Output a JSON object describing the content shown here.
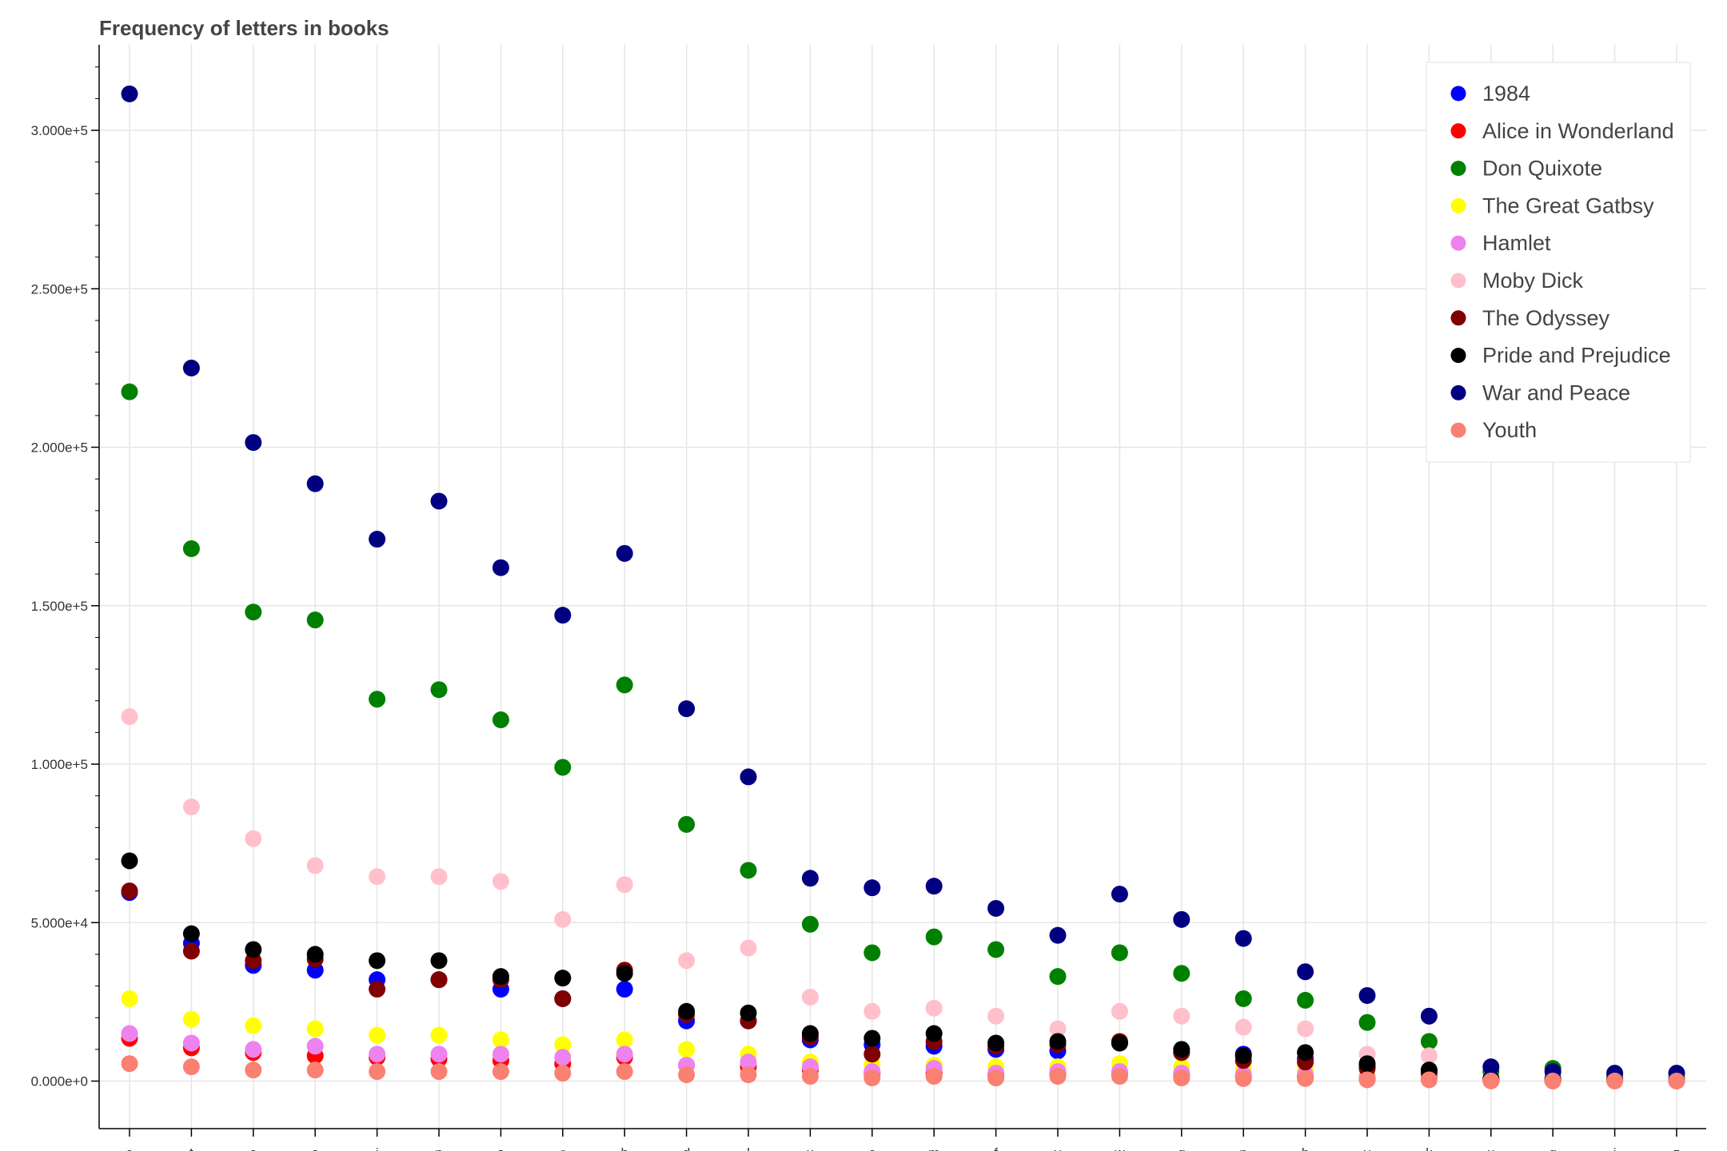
{
  "chart_data": {
    "type": "scatter",
    "title": "Frequency of letters in books",
    "xlabel": "",
    "ylabel": "",
    "categories": [
      "e",
      "t",
      "a",
      "o",
      "i",
      "n",
      "s",
      "r",
      "h",
      "d",
      "l",
      "u",
      "c",
      "m",
      "f",
      "y",
      "w",
      "g",
      "p",
      "b",
      "v",
      "k",
      "x",
      "q",
      "j",
      "z"
    ],
    "y_ticks": [
      "0.000e+0",
      "5.000e+4",
      "1.000e+5",
      "1.500e+5",
      "2.000e+5",
      "2.500e+5",
      "3.000e+5"
    ],
    "y_tick_values": [
      0,
      50000,
      100000,
      150000,
      200000,
      250000,
      300000
    ],
    "ylim": [
      -15000,
      327000
    ],
    "grid": true,
    "legend_position": "top-right",
    "series": [
      {
        "name": "1984",
        "color": "#0000ff",
        "values": [
          59500,
          43500,
          36500,
          35000,
          32000,
          32000,
          29000,
          26000,
          29000,
          19000,
          19000,
          13000,
          11500,
          11000,
          10000,
          9500,
          12000,
          9000,
          8500,
          7000,
          4500,
          3000,
          700,
          300,
          300,
          300
        ]
      },
      {
        "name": "Alice in Wonderland",
        "color": "#ff0000",
        "values": [
          13500,
          10500,
          9000,
          8000,
          7500,
          7000,
          6500,
          5500,
          7500,
          5000,
          4500,
          3500,
          2500,
          2500,
          2000,
          2500,
          2500,
          2000,
          1500,
          1500,
          800,
          1000,
          200,
          100,
          200,
          100
        ]
      },
      {
        "name": "Don Quixote",
        "color": "#008000",
        "values": [
          217500,
          168000,
          148000,
          145500,
          120500,
          123500,
          114000,
          99000,
          125000,
          81000,
          66500,
          49500,
          40500,
          45500,
          41500,
          33000,
          40500,
          34000,
          26000,
          25500,
          18500,
          12500,
          3000,
          4000,
          1500,
          1000
        ]
      },
      {
        "name": "The Great Gatbsy",
        "color": "#ffff00",
        "values": [
          26000,
          19500,
          17500,
          16500,
          14500,
          14500,
          13000,
          11500,
          13000,
          10000,
          8500,
          6000,
          5000,
          5000,
          4500,
          4500,
          5500,
          4500,
          3500,
          3500,
          2000,
          2000,
          300,
          200,
          200,
          200
        ]
      },
      {
        "name": "Hamlet",
        "color": "#ee82ee",
        "values": [
          15000,
          12000,
          10000,
          11000,
          8500,
          8500,
          8500,
          7500,
          8500,
          5000,
          6000,
          4500,
          3000,
          4000,
          2500,
          3000,
          3000,
          2500,
          2000,
          2000,
          1200,
          1000,
          200,
          200,
          200,
          100
        ]
      },
      {
        "name": "Moby Dick",
        "color": "#ffc0cb",
        "values": [
          115000,
          86500,
          76500,
          68000,
          64500,
          64500,
          63000,
          51000,
          62000,
          38000,
          42000,
          26500,
          22000,
          23000,
          20500,
          16500,
          22000,
          20500,
          17000,
          16500,
          8500,
          8000,
          1000,
          1500,
          1000,
          600
        ]
      },
      {
        "name": "The Odyssey",
        "color": "#800000",
        "values": [
          60000,
          41000,
          38000,
          38500,
          29000,
          32000,
          32000,
          26000,
          35000,
          21000,
          19000,
          14000,
          8500,
          12500,
          11000,
          11500,
          12500,
          9000,
          6500,
          6000,
          4000,
          2500,
          300,
          200,
          200,
          200
        ]
      },
      {
        "name": "Pride and Prejudice",
        "color": "#000000",
        "values": [
          69500,
          46500,
          41500,
          40000,
          38000,
          38000,
          33000,
          32500,
          34000,
          22000,
          21500,
          15000,
          13500,
          15000,
          12000,
          12500,
          12000,
          10000,
          8000,
          9000,
          5500,
          3500,
          800,
          600,
          600,
          300
        ]
      },
      {
        "name": "War and Peace",
        "color": "#000080",
        "values": [
          311500,
          225000,
          201500,
          188500,
          171000,
          183000,
          162000,
          147000,
          166500,
          117500,
          96000,
          64000,
          61000,
          61500,
          54500,
          46000,
          59000,
          51000,
          45000,
          34500,
          27000,
          20500,
          4500,
          3000,
          2500,
          2500
        ]
      },
      {
        "name": "Youth",
        "color": "#fa8072",
        "values": [
          5500,
          4500,
          3500,
          3500,
          3000,
          3000,
          3000,
          2500,
          3000,
          2000,
          2000,
          1500,
          1000,
          1500,
          1000,
          1500,
          1500,
          1000,
          800,
          800,
          400,
          400,
          50,
          30,
          30,
          20
        ]
      }
    ]
  }
}
